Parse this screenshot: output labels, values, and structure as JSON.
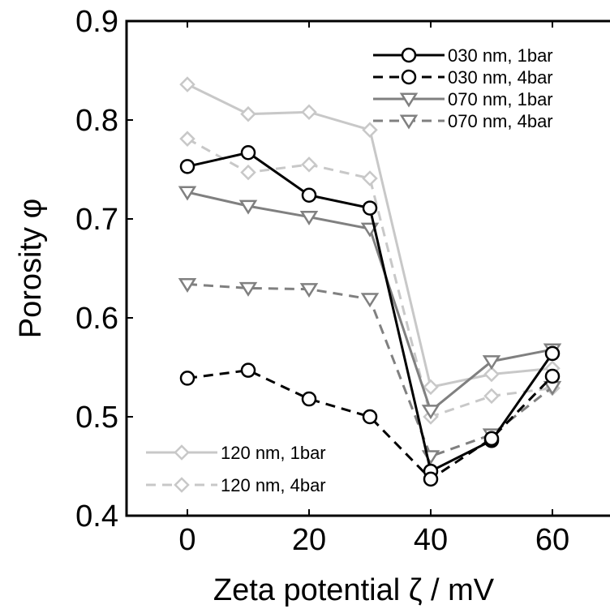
{
  "chart_data": {
    "type": "line",
    "xlabel": "Zeta potential ζ / mV",
    "ylabel": "Porosity φ",
    "xlim": [
      -10,
      70
    ],
    "ylim": [
      0.4,
      0.9
    ],
    "xticks": [
      0,
      20,
      40,
      60
    ],
    "yticks": [
      0.4,
      0.5,
      0.6,
      0.7,
      0.8,
      0.9
    ],
    "x": [
      0,
      10,
      20,
      30,
      40,
      50,
      60
    ],
    "legend_top": "top-right",
    "legend_bottom": "bottom-left",
    "series": [
      {
        "name": "030 nm, 1bar",
        "values": [
          0.753,
          0.767,
          0.724,
          0.711,
          0.445,
          0.476,
          0.564
        ],
        "color": "#000000",
        "dash": "solid",
        "marker": "circle"
      },
      {
        "name": "030 nm, 4bar",
        "values": [
          0.539,
          0.547,
          0.518,
          0.5,
          0.437,
          0.478,
          0.541
        ],
        "color": "#000000",
        "dash": "dashed",
        "marker": "circle"
      },
      {
        "name": "070 nm, 1bar",
        "values": [
          0.727,
          0.713,
          0.702,
          0.69,
          0.506,
          0.556,
          0.568
        ],
        "color": "#808080",
        "dash": "solid",
        "marker": "triangle-down"
      },
      {
        "name": "070 nm, 4bar",
        "values": [
          0.634,
          0.63,
          0.629,
          0.619,
          0.46,
          0.482,
          0.53
        ],
        "color": "#808080",
        "dash": "dashed",
        "marker": "triangle-down"
      },
      {
        "name": "120 nm, 1bar",
        "values": [
          0.836,
          0.806,
          0.808,
          0.79,
          0.53,
          0.543,
          0.549
        ],
        "color": "#c8c8c8",
        "dash": "solid",
        "marker": "diamond"
      },
      {
        "name": "120 nm, 4bar",
        "values": [
          0.781,
          0.747,
          0.755,
          0.741,
          0.5,
          0.521,
          0.529
        ],
        "color": "#c8c8c8",
        "dash": "dashed",
        "marker": "diamond"
      }
    ]
  }
}
